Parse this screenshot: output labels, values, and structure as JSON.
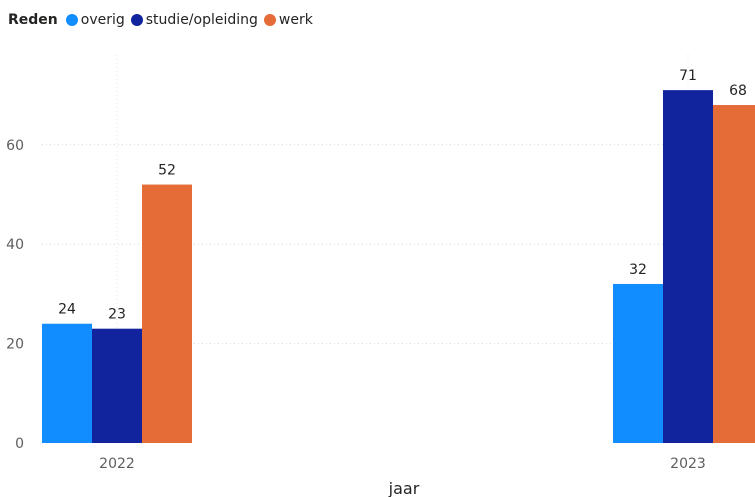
{
  "chart_data": {
    "type": "bar",
    "legend_title": "Reden",
    "legend_position": "top-left",
    "xlabel": "jaar",
    "ylabel": "",
    "categories": [
      "2022",
      "2023"
    ],
    "series": [
      {
        "name": "overig",
        "color": "#118DFF",
        "values": [
          24,
          32
        ]
      },
      {
        "name": "studie/opleiding",
        "color": "#12239E",
        "values": [
          23,
          71
        ]
      },
      {
        "name": "werk",
        "color": "#E66C37",
        "values": [
          52,
          68
        ]
      }
    ],
    "y_ticks": [
      0,
      20,
      40,
      60
    ],
    "ylim": [
      0,
      77
    ],
    "grid": true
  }
}
